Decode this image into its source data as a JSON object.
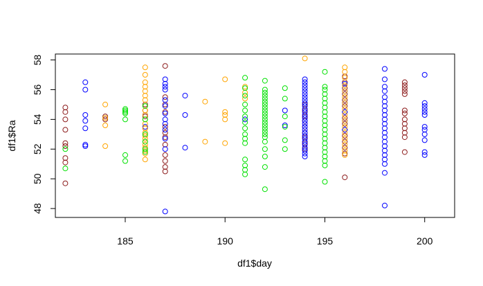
{
  "chart_data": {
    "type": "scatter",
    "title": "",
    "xlabel": "df1$day",
    "ylabel": "df1$Ra",
    "xlim": [
      181.5,
      201.5
    ],
    "ylim": [
      47.4,
      58.4
    ],
    "xticks": [
      185,
      190,
      195,
      200
    ],
    "yticks": [
      48,
      50,
      52,
      54,
      56,
      58
    ],
    "grid": false,
    "legend": "none",
    "colors": {
      "darkred": "#8b1a1a",
      "blue": "#0000ff",
      "orange": "#ffa500",
      "green": "#00e000"
    },
    "series": [
      {
        "color": "darkred",
        "points": [
          [
            182,
            54.8
          ],
          [
            182,
            54.5
          ],
          [
            182,
            54.0
          ],
          [
            182,
            53.3
          ],
          [
            182,
            52.4
          ],
          [
            182,
            52.2
          ],
          [
            182,
            51.4
          ],
          [
            182,
            51.1
          ],
          [
            182,
            49.7
          ],
          [
            184,
            54.2
          ],
          [
            184,
            54.0
          ],
          [
            186,
            55.0
          ],
          [
            186,
            54.6
          ],
          [
            186,
            54.2
          ],
          [
            186,
            53.4
          ],
          [
            187,
            57.6
          ],
          [
            187,
            55.5
          ],
          [
            187,
            55.0
          ],
          [
            187,
            54.5
          ],
          [
            187,
            53.5
          ],
          [
            187,
            53.1
          ],
          [
            187,
            52.8
          ],
          [
            187,
            52.3
          ],
          [
            187,
            51.6
          ],
          [
            187,
            51.2
          ],
          [
            187,
            50.8
          ],
          [
            187,
            50.5
          ],
          [
            194,
            55.0
          ],
          [
            194,
            54.6
          ],
          [
            194,
            54.2
          ],
          [
            194,
            53.9
          ],
          [
            194,
            53.5
          ],
          [
            194,
            53.1
          ],
          [
            194,
            52.8
          ],
          [
            194,
            52.4
          ],
          [
            194,
            52.0
          ],
          [
            196,
            56.9
          ],
          [
            196,
            56.5
          ],
          [
            196,
            56.1
          ],
          [
            196,
            55.7
          ],
          [
            196,
            55.3
          ],
          [
            196,
            54.9
          ],
          [
            196,
            54.5
          ],
          [
            196,
            54.1
          ],
          [
            196,
            53.7
          ],
          [
            196,
            53.3
          ],
          [
            196,
            52.9
          ],
          [
            196,
            52.5
          ],
          [
            196,
            52.1
          ],
          [
            196,
            51.7
          ],
          [
            196,
            50.1
          ],
          [
            199,
            56.5
          ],
          [
            199,
            56.3
          ],
          [
            199,
            56.1
          ],
          [
            199,
            55.9
          ],
          [
            199,
            55.7
          ],
          [
            199,
            54.6
          ],
          [
            199,
            54.4
          ],
          [
            199,
            54.0
          ],
          [
            199,
            53.7
          ],
          [
            199,
            53.4
          ],
          [
            199,
            53.1
          ],
          [
            199,
            52.8
          ],
          [
            199,
            51.8
          ]
        ]
      },
      {
        "color": "blue",
        "points": [
          [
            183,
            56.5
          ],
          [
            183,
            56.0
          ],
          [
            183,
            54.3
          ],
          [
            183,
            53.9
          ],
          [
            183,
            53.4
          ],
          [
            183,
            52.3
          ],
          [
            183,
            52.2
          ],
          [
            186,
            54.3
          ],
          [
            186,
            53.5
          ],
          [
            187,
            56.7
          ],
          [
            187,
            56.4
          ],
          [
            187,
            56.2
          ],
          [
            187,
            56.0
          ],
          [
            187,
            55.3
          ],
          [
            187,
            54.9
          ],
          [
            187,
            54.4
          ],
          [
            187,
            54.0
          ],
          [
            187,
            53.7
          ],
          [
            187,
            53.3
          ],
          [
            187,
            52.7
          ],
          [
            187,
            52.0
          ],
          [
            187,
            47.8
          ],
          [
            188,
            55.6
          ],
          [
            188,
            54.3
          ],
          [
            188,
            52.1
          ],
          [
            191,
            54.0
          ],
          [
            193,
            54.6
          ],
          [
            193,
            53.6
          ],
          [
            194,
            56.7
          ],
          [
            194,
            56.5
          ],
          [
            194,
            56.3
          ],
          [
            194,
            56.1
          ],
          [
            194,
            55.9
          ],
          [
            194,
            55.7
          ],
          [
            194,
            55.5
          ],
          [
            194,
            55.3
          ],
          [
            194,
            55.1
          ],
          [
            194,
            54.9
          ],
          [
            194,
            54.7
          ],
          [
            194,
            54.5
          ],
          [
            194,
            54.3
          ],
          [
            194,
            54.1
          ],
          [
            194,
            53.9
          ],
          [
            194,
            53.7
          ],
          [
            194,
            53.5
          ],
          [
            194,
            53.3
          ],
          [
            194,
            53.1
          ],
          [
            194,
            52.9
          ],
          [
            194,
            52.7
          ],
          [
            194,
            52.5
          ],
          [
            194,
            52.3
          ],
          [
            194,
            52.1
          ],
          [
            194,
            51.9
          ],
          [
            194,
            51.7
          ],
          [
            194,
            51.5
          ],
          [
            196,
            56.4
          ],
          [
            196,
            55.9
          ],
          [
            196,
            55.1
          ],
          [
            196,
            54.5
          ],
          [
            196,
            53.9
          ],
          [
            196,
            53.3
          ],
          [
            198,
            57.4
          ],
          [
            198,
            56.7
          ],
          [
            198,
            56.2
          ],
          [
            198,
            55.9
          ],
          [
            198,
            55.5
          ],
          [
            198,
            55.2
          ],
          [
            198,
            54.9
          ],
          [
            198,
            54.6
          ],
          [
            198,
            54.3
          ],
          [
            198,
            54.0
          ],
          [
            198,
            53.7
          ],
          [
            198,
            53.4
          ],
          [
            198,
            53.1
          ],
          [
            198,
            52.8
          ],
          [
            198,
            52.5
          ],
          [
            198,
            52.2
          ],
          [
            198,
            51.9
          ],
          [
            198,
            51.6
          ],
          [
            198,
            51.3
          ],
          [
            198,
            51.0
          ],
          [
            198,
            50.4
          ],
          [
            198,
            48.2
          ],
          [
            200,
            57.0
          ],
          [
            200,
            55.1
          ],
          [
            200,
            54.9
          ],
          [
            200,
            54.7
          ],
          [
            200,
            54.5
          ],
          [
            200,
            54.3
          ],
          [
            200,
            53.5
          ],
          [
            200,
            53.3
          ],
          [
            200,
            53.0
          ],
          [
            200,
            52.6
          ],
          [
            200,
            51.8
          ],
          [
            200,
            51.6
          ]
        ]
      },
      {
        "color": "orange",
        "points": [
          [
            184,
            55.0
          ],
          [
            184,
            54.1
          ],
          [
            184,
            53.6
          ],
          [
            184,
            52.2
          ],
          [
            186,
            57.5
          ],
          [
            186,
            57.0
          ],
          [
            186,
            56.5
          ],
          [
            186,
            56.2
          ],
          [
            186,
            55.9
          ],
          [
            186,
            55.6
          ],
          [
            186,
            55.3
          ],
          [
            186,
            54.9
          ],
          [
            186,
            54.6
          ],
          [
            186,
            54.3
          ],
          [
            186,
            54.0
          ],
          [
            186,
            53.7
          ],
          [
            186,
            53.4
          ],
          [
            186,
            53.1
          ],
          [
            186,
            52.9
          ],
          [
            186,
            52.7
          ],
          [
            186,
            52.5
          ],
          [
            186,
            52.3
          ],
          [
            186,
            52.1
          ],
          [
            186,
            51.9
          ],
          [
            186,
            51.7
          ],
          [
            186,
            51.3
          ],
          [
            189,
            55.2
          ],
          [
            189,
            52.5
          ],
          [
            190,
            56.7
          ],
          [
            190,
            54.5
          ],
          [
            190,
            54.3
          ],
          [
            190,
            54.0
          ],
          [
            190,
            52.4
          ],
          [
            191,
            56.2
          ],
          [
            191,
            55.8
          ],
          [
            191,
            55.4
          ],
          [
            194,
            58.1
          ],
          [
            196,
            57.5
          ],
          [
            196,
            57.2
          ],
          [
            196,
            56.8
          ],
          [
            196,
            56.3
          ],
          [
            196,
            55.9
          ],
          [
            196,
            55.5
          ],
          [
            196,
            55.1
          ],
          [
            196,
            54.7
          ],
          [
            196,
            54.3
          ],
          [
            196,
            53.9
          ],
          [
            196,
            53.5
          ],
          [
            196,
            53.1
          ],
          [
            196,
            52.7
          ],
          [
            196,
            52.3
          ],
          [
            196,
            51.9
          ],
          [
            196,
            51.6
          ]
        ]
      },
      {
        "color": "green",
        "points": [
          [
            182,
            52.0
          ],
          [
            182,
            50.7
          ],
          [
            185,
            54.7
          ],
          [
            185,
            54.6
          ],
          [
            185,
            54.5
          ],
          [
            185,
            54.4
          ],
          [
            185,
            54.0
          ],
          [
            185,
            51.6
          ],
          [
            185,
            51.2
          ],
          [
            186,
            54.9
          ],
          [
            186,
            54.0
          ],
          [
            186,
            53.0
          ],
          [
            186,
            52.5
          ],
          [
            186,
            52.0
          ],
          [
            186,
            51.8
          ],
          [
            191,
            56.8
          ],
          [
            191,
            56.1
          ],
          [
            191,
            55.6
          ],
          [
            191,
            55.0
          ],
          [
            191,
            54.6
          ],
          [
            191,
            54.2
          ],
          [
            191,
            53.8
          ],
          [
            191,
            53.4
          ],
          [
            191,
            53.0
          ],
          [
            191,
            52.7
          ],
          [
            191,
            52.4
          ],
          [
            191,
            51.3
          ],
          [
            191,
            50.9
          ],
          [
            191,
            50.6
          ],
          [
            191,
            50.3
          ],
          [
            192,
            56.6
          ],
          [
            192,
            56.0
          ],
          [
            192,
            55.8
          ],
          [
            192,
            55.6
          ],
          [
            192,
            55.4
          ],
          [
            192,
            55.2
          ],
          [
            192,
            55.0
          ],
          [
            192,
            54.8
          ],
          [
            192,
            54.6
          ],
          [
            192,
            54.4
          ],
          [
            192,
            54.2
          ],
          [
            192,
            54.0
          ],
          [
            192,
            53.8
          ],
          [
            192,
            53.6
          ],
          [
            192,
            53.4
          ],
          [
            192,
            53.2
          ],
          [
            192,
            53.0
          ],
          [
            192,
            52.8
          ],
          [
            192,
            52.5
          ],
          [
            192,
            52.0
          ],
          [
            192,
            51.5
          ],
          [
            192,
            50.8
          ],
          [
            192,
            49.3
          ],
          [
            193,
            56.1
          ],
          [
            193,
            55.4
          ],
          [
            193,
            54.2
          ],
          [
            193,
            53.5
          ],
          [
            193,
            52.6
          ],
          [
            193,
            52.0
          ],
          [
            195,
            57.2
          ],
          [
            195,
            56.2
          ],
          [
            195,
            56.0
          ],
          [
            195,
            55.7
          ],
          [
            195,
            55.4
          ],
          [
            195,
            55.1
          ],
          [
            195,
            54.8
          ],
          [
            195,
            54.5
          ],
          [
            195,
            54.2
          ],
          [
            195,
            53.9
          ],
          [
            195,
            53.6
          ],
          [
            195,
            53.3
          ],
          [
            195,
            53.0
          ],
          [
            195,
            52.7
          ],
          [
            195,
            52.4
          ],
          [
            195,
            52.1
          ],
          [
            195,
            51.8
          ],
          [
            195,
            51.5
          ],
          [
            195,
            51.2
          ],
          [
            195,
            50.9
          ],
          [
            195,
            49.8
          ]
        ]
      }
    ]
  }
}
